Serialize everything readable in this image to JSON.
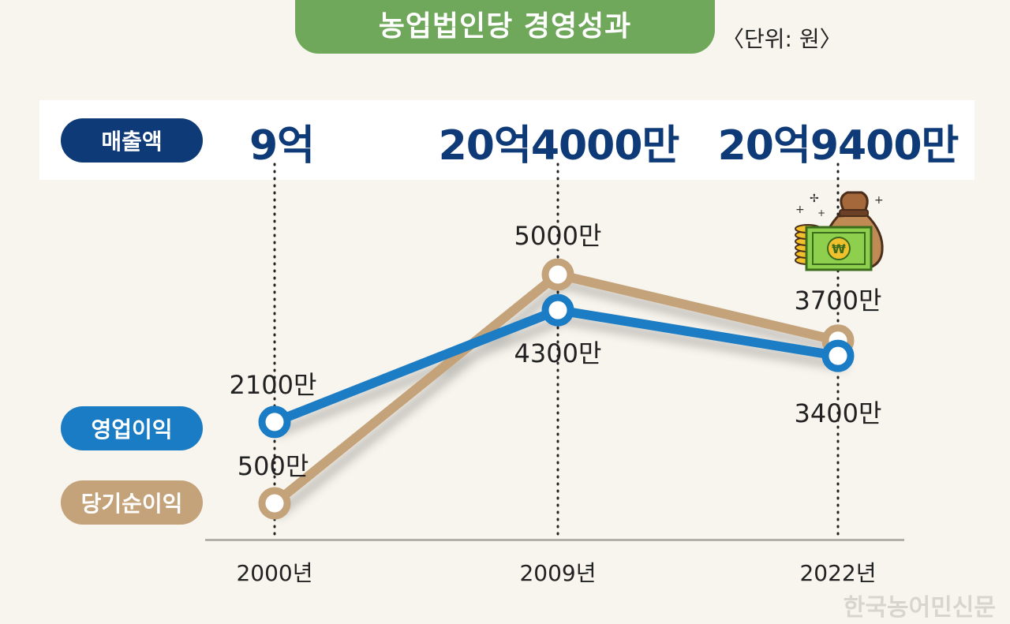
{
  "title": "농업법인당 경영성과",
  "unit": "〈단위: 원〉",
  "watermark": "한국농어민신문",
  "chart_data": {
    "type": "line",
    "x": [
      "2000년",
      "2009년",
      "2022년"
    ],
    "sales": {
      "label": "매출액",
      "values": [
        90000,
        204000,
        209400
      ],
      "labels": [
        "9억",
        "20억4000만",
        "20억9400만"
      ]
    },
    "series": [
      {
        "name": "영업이익",
        "values": [
          2100,
          4300,
          3400
        ],
        "labels": [
          "2100만",
          "4300만",
          "3400만"
        ],
        "color": "#1a7cc4"
      },
      {
        "name": "당기순이익",
        "values": [
          500,
          5000,
          3700
        ],
        "labels": [
          "500만",
          "5000만",
          "3700만"
        ],
        "color": "#c4a27a"
      }
    ]
  }
}
